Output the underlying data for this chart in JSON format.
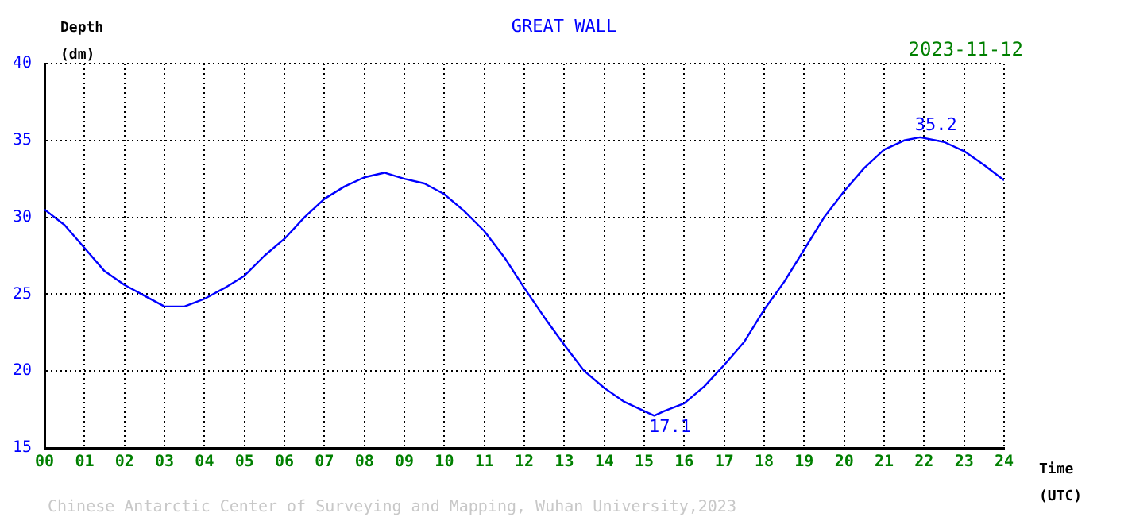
{
  "chart_data": {
    "type": "line",
    "title": "GREAT WALL",
    "subtitle": "2023-11-12",
    "xlabel": "Time (UTC)",
    "ylabel": "Depth (dm)",
    "x": [
      0,
      0.5,
      1,
      1.5,
      2,
      2.5,
      3,
      3.5,
      4,
      4.5,
      5,
      5.5,
      6,
      6.5,
      7,
      7.5,
      8,
      8.5,
      9,
      9.5,
      10,
      10.5,
      11,
      11.5,
      12,
      12.5,
      13,
      13.5,
      14,
      14.5,
      15,
      15.25,
      15.5,
      16,
      16.5,
      17,
      17.5,
      18,
      18.5,
      19,
      19.5,
      20,
      20.5,
      21,
      21.5,
      21.9,
      22.5,
      23,
      23.5,
      24
    ],
    "series": [
      {
        "color": "#0000ff",
        "values": [
          30.5,
          29.5,
          28.0,
          26.5,
          25.6,
          24.9,
          24.2,
          24.2,
          24.7,
          25.4,
          26.2,
          27.5,
          28.6,
          30.0,
          31.2,
          32.0,
          32.6,
          32.9,
          32.5,
          32.2,
          31.5,
          30.4,
          29.1,
          27.4,
          25.4,
          23.5,
          21.7,
          20.0,
          18.9,
          18.0,
          17.4,
          17.1,
          17.4,
          17.9,
          19.0,
          20.4,
          21.9,
          24.0,
          25.8,
          27.9,
          30.0,
          31.7,
          33.2,
          34.4,
          35.0,
          35.2,
          34.9,
          34.3,
          33.4,
          32.4
        ]
      }
    ],
    "xlim": [
      0,
      24
    ],
    "ylim": [
      15,
      40
    ],
    "xticks": [
      {
        "value": 0,
        "label": "00"
      },
      {
        "value": 1,
        "label": "01"
      },
      {
        "value": 2,
        "label": "02"
      },
      {
        "value": 3,
        "label": "03"
      },
      {
        "value": 4,
        "label": "04"
      },
      {
        "value": 5,
        "label": "05"
      },
      {
        "value": 6,
        "label": "06"
      },
      {
        "value": 7,
        "label": "07"
      },
      {
        "value": 8,
        "label": "08"
      },
      {
        "value": 9,
        "label": "09"
      },
      10,
      11,
      12,
      13,
      14,
      15,
      16,
      17,
      18,
      19,
      20,
      21,
      22,
      23,
      24
    ],
    "yticks": [
      15,
      20,
      25,
      30,
      35,
      40
    ],
    "grid": true,
    "legend": false,
    "marker": "none",
    "line_style": "solid",
    "annotations": [
      {
        "text": "35.2",
        "x": 21.9,
        "y": 35.2
      },
      {
        "text": "17.1",
        "x": 15.25,
        "y": 17.1
      },
      "Chinese Antarctic Center of Surveying and Mapping, Wuhan University,2023"
    ]
  }
}
